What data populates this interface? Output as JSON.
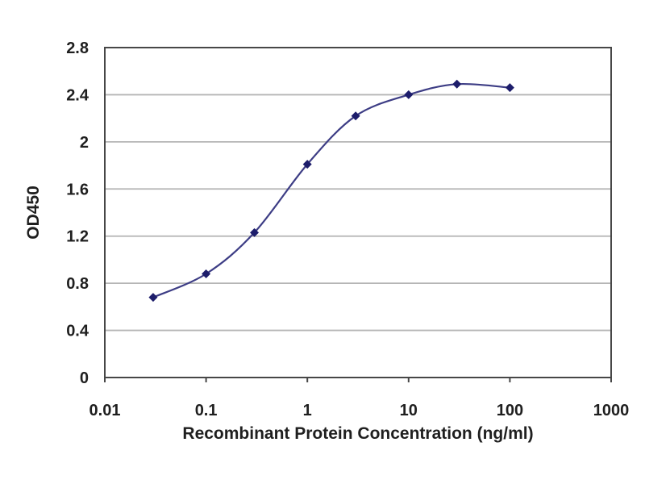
{
  "chart_data": {
    "type": "line",
    "title": "",
    "xlabel": "Recombinant Protein Concentration (ng/ml)",
    "ylabel": "OD450",
    "x_scale": "log",
    "xlim": [
      0.01,
      1000
    ],
    "ylim": [
      0,
      2.8
    ],
    "x_ticks": [
      0.01,
      0.1,
      1,
      10,
      100,
      1000
    ],
    "x_tick_labels": [
      "0.01",
      "0.1",
      "1",
      "10",
      "100",
      "1000"
    ],
    "y_ticks": [
      0,
      0.4,
      0.8,
      1.2,
      1.6,
      2,
      2.4,
      2.8
    ],
    "y_tick_labels": [
      "0",
      "0.4",
      "0.8",
      "1.2",
      "1.6",
      "2",
      "2.4",
      "2.8"
    ],
    "grid": "horizontal",
    "legend": "none",
    "series": [
      {
        "name": "OD450",
        "marker": "diamond",
        "x": [
          0.03,
          0.1,
          0.3,
          1,
          3,
          10,
          30,
          100
        ],
        "y": [
          0.68,
          0.88,
          1.23,
          1.81,
          2.22,
          2.4,
          2.49,
          2.46
        ]
      }
    ]
  },
  "colors": {
    "background": "#ffffff",
    "plot_background": "#ffffff",
    "grid": "#b5b5b5",
    "axis_border": "#474747",
    "tick": "#474747",
    "line": "#3d3d85",
    "marker": "#1d1d6b",
    "text": "#1f1f1f"
  }
}
